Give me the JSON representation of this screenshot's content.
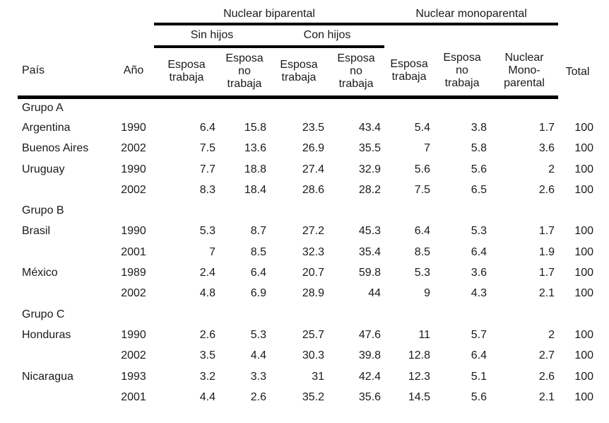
{
  "table": {
    "top_groups": {
      "biparental": "Nuclear biparental",
      "monoparental": "Nuclear monoparental"
    },
    "subgroups": {
      "sin_hijos": "Sin hijos",
      "con_hijos": "Con hijos"
    },
    "column_headers": [
      "País",
      "Año",
      "Esposa\ntrabaja",
      "Esposa\nno\ntrabaja",
      "Esposa\ntrabaja",
      "Esposa\nno\ntrabaja",
      "Esposa\ntrabaja",
      "Esposa\nno\ntrabaja",
      "Nuclear\nMono-\nparental",
      "Total"
    ],
    "rows": [
      {
        "type": "group",
        "pais": "Grupo A",
        "ano": "",
        "values": [
          "",
          "",
          "",
          "",
          "",
          "",
          "",
          ""
        ]
      },
      {
        "type": "data",
        "pais": "Argentina",
        "ano": "1990",
        "values": [
          "6.4",
          "15.8",
          "23.5",
          "43.4",
          "5.4",
          "3.8",
          "1.7",
          "100"
        ]
      },
      {
        "type": "data",
        "pais": "Buenos Aires",
        "ano": "2002",
        "values": [
          "7.5",
          "13.6",
          "26.9",
          "35.5",
          "7",
          "5.8",
          "3.6",
          "100"
        ]
      },
      {
        "type": "data",
        "pais": "Uruguay",
        "ano": "1990",
        "values": [
          "7.7",
          "18.8",
          "27.4",
          "32.9",
          "5.6",
          "5.6",
          "2",
          "100"
        ]
      },
      {
        "type": "data",
        "pais": "",
        "ano": "2002",
        "values": [
          "8.3",
          "18.4",
          "28.6",
          "28.2",
          "7.5",
          "6.5",
          "2.6",
          "100"
        ]
      },
      {
        "type": "group",
        "pais": "Grupo B",
        "ano": "",
        "values": [
          "",
          "",
          "",
          "",
          "",
          "",
          "",
          ""
        ]
      },
      {
        "type": "data",
        "pais": "Brasil",
        "ano": "1990",
        "values": [
          "5.3",
          "8.7",
          "27.2",
          "45.3",
          "6.4",
          "5.3",
          "1.7",
          "100"
        ]
      },
      {
        "type": "data",
        "pais": "",
        "ano": "2001",
        "values": [
          "7",
          "8.5",
          "32.3",
          "35.4",
          "8.5",
          "6.4",
          "1.9",
          "100"
        ]
      },
      {
        "type": "data",
        "pais": "México",
        "ano": "1989",
        "values": [
          "2.4",
          "6.4",
          "20.7",
          "59.8",
          "5.3",
          "3.6",
          "1.7",
          "100"
        ]
      },
      {
        "type": "data",
        "pais": "",
        "ano": "2002",
        "values": [
          "4.8",
          "6.9",
          "28.9",
          "44",
          "9",
          "4.3",
          "2.1",
          "100"
        ]
      },
      {
        "type": "group",
        "pais": "Grupo C",
        "ano": "",
        "values": [
          "",
          "",
          "",
          "",
          "",
          "",
          "",
          ""
        ]
      },
      {
        "type": "data",
        "pais": "Honduras",
        "ano": "1990",
        "values": [
          "2.6",
          "5.3",
          "25.7",
          "47.6",
          "11",
          "5.7",
          "2",
          "100"
        ]
      },
      {
        "type": "data",
        "pais": "",
        "ano": "2002",
        "values": [
          "3.5",
          "4.4",
          "30.3",
          "39.8",
          "12.8",
          "6.4",
          "2.7",
          "100"
        ]
      },
      {
        "type": "data",
        "pais": "Nicaragua",
        "ano": "1993",
        "values": [
          "3.2",
          "3.3",
          "31",
          "42.4",
          "12.3",
          "5.1",
          "2.6",
          "100"
        ]
      },
      {
        "type": "data",
        "pais": "",
        "ano": "2001",
        "values": [
          "4.4",
          "2.6",
          "35.2",
          "35.6",
          "14.5",
          "5.6",
          "2.1",
          "100"
        ]
      }
    ]
  },
  "colors": {
    "text": "#1a1a1a",
    "rule": "#000000",
    "background": "#ffffff"
  }
}
